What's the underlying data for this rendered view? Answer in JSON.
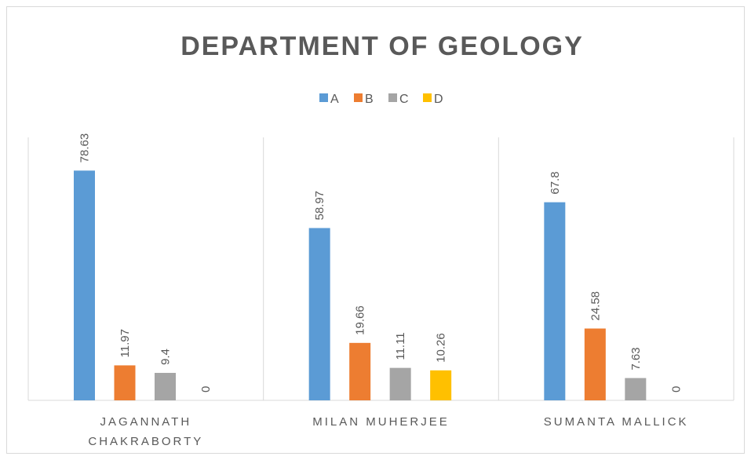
{
  "chart_data": {
    "type": "bar",
    "title": "DEPARTMENT OF GEOLOGY",
    "categories": [
      "JAGANNATH CHAKRABORTY",
      "MILAN MUHERJEE",
      "SUMANTA MALLICK"
    ],
    "series": [
      {
        "name": "A",
        "color": "#5b9bd5",
        "values": [
          78.63,
          58.97,
          67.8
        ]
      },
      {
        "name": "B",
        "color": "#ed7d31",
        "values": [
          11.97,
          19.66,
          24.58
        ]
      },
      {
        "name": "C",
        "color": "#a5a5a5",
        "values": [
          9.4,
          11.11,
          7.63
        ]
      },
      {
        "name": "D",
        "color": "#ffc000",
        "values": [
          0,
          10.26,
          0
        ]
      }
    ],
    "ylim": [
      0,
      90
    ],
    "legend": "top"
  }
}
